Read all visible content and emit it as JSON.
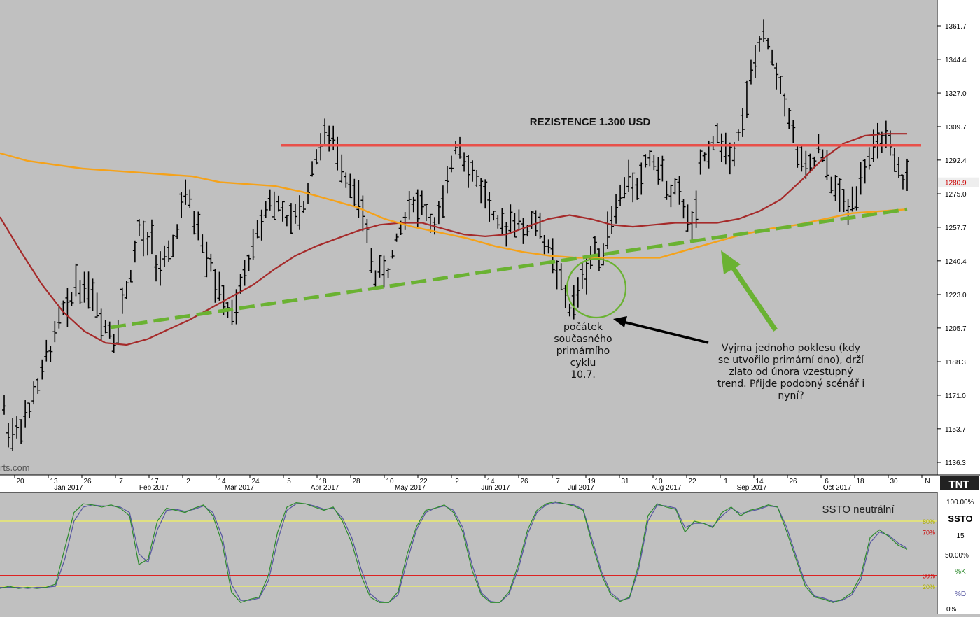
{
  "colors": {
    "background": "#c0c0c0",
    "bars": "#000000",
    "resistance": "#e8504a",
    "ma_red": "#a52a2a",
    "ma_orange": "#f5a21a",
    "trendline": "#6ab232",
    "circle": "#6ab232",
    "stoch_k": "#2e8b2e",
    "stoch_d": "#5555a0",
    "level_yellow": "#ffff44",
    "level_red": "#dd2222"
  },
  "chart_data": [
    {
      "type": "ohlc",
      "symbol": "gold",
      "y_ticks": [
        "1361.7",
        "1344.4",
        "1327.0",
        "1309.7",
        "1292.4",
        "1275.0",
        "1257.7",
        "1240.4",
        "1223.0",
        "1205.7",
        "1188.3",
        "1171.0",
        "1153.7",
        "1136.3"
      ],
      "ylim": [
        1130,
        1368
      ],
      "last_price": "1280.9",
      "x_day_ticks": [
        "20",
        "13",
        "26",
        "7",
        "17",
        "2",
        "14",
        "24",
        "5",
        "18",
        "28",
        "10",
        "22",
        "2",
        "14",
        "26",
        "7",
        "19",
        "31",
        "10",
        "22",
        "1",
        "14",
        "26",
        "6",
        "18",
        "30",
        "N"
      ],
      "x_month_ticks": [
        "Jan 2017",
        "Feb 2017",
        "Mar 2017",
        "Apr 2017",
        "May 2017",
        "Jun 2017",
        "Jul 2017",
        "Aug 2017",
        "Sep 2017",
        "Oct 2017"
      ],
      "watermark": "rts.com",
      "logo": "TNT",
      "close_path": [
        [
          1164,
          1150
        ],
        [
          1152,
          1158
        ],
        [
          1158,
          1172
        ],
        [
          1176,
          1190
        ],
        [
          1196,
          1208
        ],
        [
          1216,
          1214
        ],
        [
          1232,
          1226
        ],
        [
          1228,
          1224
        ],
        [
          1212,
          1208
        ],
        [
          1205,
          1199
        ],
        [
          1218,
          1228
        ],
        [
          1242,
          1258
        ],
        [
          1246,
          1254
        ],
        [
          1236,
          1238
        ],
        [
          1242,
          1252
        ],
        [
          1268,
          1275
        ],
        [
          1262,
          1258
        ],
        [
          1244,
          1240
        ],
        [
          1226,
          1222
        ],
        [
          1214,
          1209
        ],
        [
          1226,
          1236
        ],
        [
          1248,
          1256
        ],
        [
          1266,
          1274
        ],
        [
          1266,
          1270
        ],
        [
          1258,
          1262
        ],
        [
          1264,
          1270
        ],
        [
          1286,
          1295
        ],
        [
          1306,
          1302
        ],
        [
          1300,
          1292
        ],
        [
          1284,
          1278
        ],
        [
          1272,
          1262
        ],
        [
          1244,
          1232
        ],
        [
          1236,
          1234
        ],
        [
          1246,
          1256
        ],
        [
          1264,
          1274
        ],
        [
          1268,
          1270
        ],
        [
          1262,
          1258
        ],
        [
          1266,
          1276
        ],
        [
          1296,
          1304
        ],
        [
          1294,
          1286
        ],
        [
          1282,
          1278
        ],
        [
          1272,
          1262
        ],
        [
          1256,
          1258
        ],
        [
          1264,
          1262
        ],
        [
          1254,
          1258
        ],
        [
          1262,
          1254
        ],
        [
          1248,
          1242
        ],
        [
          1232,
          1222
        ],
        [
          1214,
          1222
        ],
        [
          1232,
          1236
        ],
        [
          1248,
          1242
        ],
        [
          1254,
          1262
        ],
        [
          1270,
          1276
        ],
        [
          1284,
          1278
        ],
        [
          1282,
          1296
        ],
        [
          1292,
          1288
        ],
        [
          1280,
          1276
        ],
        [
          1276,
          1270
        ],
        [
          1260,
          1258
        ],
        [
          1288,
          1296
        ],
        [
          1302,
          1304
        ],
        [
          1300,
          1294
        ],
        [
          1304,
          1312
        ],
        [
          1326,
          1342
        ],
        [
          1352,
          1356
        ],
        [
          1346,
          1336
        ],
        [
          1328,
          1316
        ],
        [
          1300,
          1292
        ],
        [
          1286,
          1290
        ],
        [
          1298,
          1290
        ],
        [
          1282,
          1276
        ],
        [
          1272,
          1266
        ],
        [
          1274,
          1282
        ],
        [
          1292,
          1296
        ],
        [
          1300,
          1306
        ],
        [
          1298,
          1288
        ],
        [
          1282,
          1284
        ]
      ],
      "series": [
        {
          "name": "",
          "role": "red moving average",
          "values": [
            1263,
            1245,
            1228,
            1214,
            1204,
            1198,
            1197,
            1200,
            1205,
            1210,
            1216,
            1222,
            1228,
            1236,
            1243,
            1248,
            1252,
            1256,
            1259,
            1260,
            1260,
            1257,
            1254,
            1253,
            1254,
            1258,
            1262,
            1264,
            1262,
            1259,
            1258,
            1259,
            1260,
            1260,
            1260,
            1262,
            1266,
            1272,
            1282,
            1293,
            1301,
            1305,
            1306,
            1306
          ]
        },
        {
          "name": "",
          "role": "orange moving average",
          "values": [
            1296,
            1292,
            1290,
            1288,
            1287,
            1286,
            1285,
            1284,
            1281,
            1280,
            1279,
            1276,
            1272,
            1268,
            1262,
            1258,
            1255,
            1252,
            1248,
            1245,
            1243,
            1242,
            1242,
            1242,
            1242,
            1246,
            1250,
            1254,
            1257,
            1259,
            1262,
            1265,
            1266,
            1267
          ]
        },
        {
          "name": "",
          "role": "rising support trendline",
          "start": [
            "26",
            1206
          ],
          "end": [
            "30",
            1267
          ]
        },
        {
          "name": "",
          "role": "resistance line",
          "level": 1300
        }
      ]
    },
    {
      "type": "line",
      "title": "SSTO",
      "status": "SSTO neutrální",
      "param": "15",
      "value_label": "50.00%",
      "y_ticks": [
        "100.00%",
        "0%"
      ],
      "levels": [
        {
          "value": 80,
          "label": "80%",
          "color": "#ffff44"
        },
        {
          "value": 70,
          "label": "70%",
          "color": "#dd2222"
        },
        {
          "value": 30,
          "label": "30%",
          "color": "#dd2222"
        },
        {
          "value": 20,
          "label": "20%",
          "color": "#ffff44"
        }
      ],
      "series": [
        {
          "name": "%K",
          "values": [
            18,
            20,
            18,
            19,
            18,
            19,
            22,
            55,
            88,
            96,
            95,
            93,
            95,
            92,
            85,
            40,
            45,
            80,
            92,
            90,
            88,
            92,
            95,
            85,
            60,
            15,
            5,
            8,
            10,
            30,
            70,
            93,
            97,
            96,
            93,
            90,
            93,
            80,
            60,
            30,
            10,
            5,
            5,
            15,
            50,
            75,
            90,
            92,
            95,
            88,
            70,
            35,
            12,
            5,
            5,
            15,
            40,
            72,
            90,
            96,
            98,
            96,
            94,
            90,
            58,
            30,
            12,
            6,
            10,
            40,
            85,
            96,
            93,
            91,
            70,
            80,
            78,
            74,
            88,
            93,
            85,
            90,
            92,
            95,
            93,
            70,
            45,
            20,
            10,
            8,
            5,
            8,
            14,
            30,
            65,
            72,
            66,
            58,
            54
          ]
        },
        {
          "name": "%D",
          "values": [
            19,
            19,
            19,
            18,
            19,
            19,
            20,
            45,
            80,
            93,
            95,
            94,
            94,
            93,
            88,
            50,
            42,
            72,
            90,
            91,
            89,
            91,
            94,
            88,
            66,
            22,
            7,
            7,
            9,
            25,
            62,
            90,
            96,
            96,
            94,
            91,
            92,
            83,
            65,
            36,
            13,
            6,
            5,
            12,
            44,
            72,
            88,
            92,
            94,
            90,
            74,
            40,
            14,
            6,
            5,
            13,
            36,
            68,
            88,
            95,
            97,
            96,
            95,
            91,
            62,
            33,
            14,
            7,
            9,
            36,
            80,
            95,
            94,
            92,
            74,
            78,
            78,
            75,
            85,
            92,
            87,
            89,
            91,
            94,
            93,
            74,
            48,
            23,
            11,
            9,
            6,
            7,
            12,
            26,
            60,
            70,
            67,
            60,
            55
          ]
        }
      ]
    }
  ],
  "annotations": {
    "resistance_title": "REZISTENCE 1.300 USD",
    "cycle_note": [
      "počátek",
      "současného",
      "primárního",
      "cyklu",
      "10.7."
    ],
    "trend_note": [
      "Vyjma jednoho poklesu (kdy",
      "se utvořilo primární dno), drží",
      "zlato od února vzestupný",
      "trend. Přijde podobný scénář i",
      "nyní?"
    ]
  }
}
